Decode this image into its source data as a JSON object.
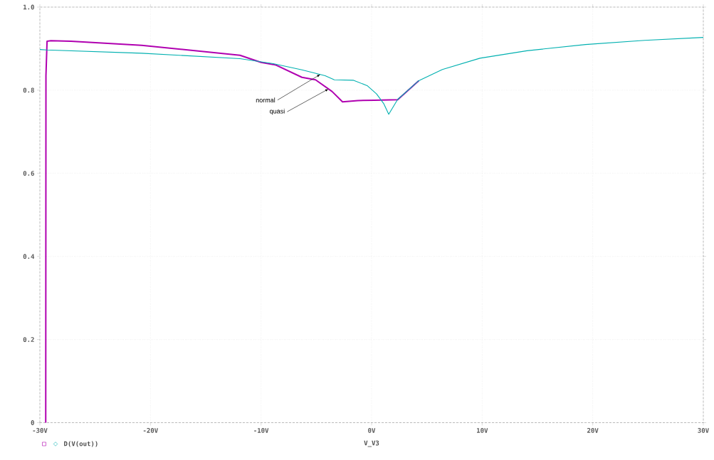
{
  "chart_data": {
    "type": "line",
    "xlabel": "V_V3",
    "xlim": [
      -30,
      30
    ],
    "ylim": [
      0,
      1.0
    ],
    "xticks": [
      {
        "value": -30,
        "label": "-30V"
      },
      {
        "value": -20,
        "label": "-20V"
      },
      {
        "value": -10,
        "label": "-10V"
      },
      {
        "value": 0,
        "label": "0V"
      },
      {
        "value": 10,
        "label": "10V"
      },
      {
        "value": 20,
        "label": "20V"
      },
      {
        "value": 30,
        "label": "30V"
      }
    ],
    "yticks": [
      0,
      0.2,
      0.4,
      0.6,
      0.8,
      {
        "value": 1.0,
        "label": "1.0"
      }
    ],
    "grid": true,
    "legend": "bottom left",
    "line_style": "solid",
    "series": [
      {
        "name": "D(V(out))",
        "color": "#b000b0",
        "x": [
          -29.47,
          -29.45,
          -29.35,
          -29,
          -27.2,
          -20.8,
          -11.9,
          -10,
          -8.9,
          -8.6,
          -6.3,
          -5.07,
          -3.58,
          -2.63,
          -1.25,
          0.24,
          2.36,
          4.27
        ],
        "values": [
          0,
          0.835,
          0.918,
          0.919,
          0.918,
          0.908,
          0.884,
          0.867,
          0.862,
          0.86,
          0.831,
          0.825,
          0.797,
          0.772,
          0.775,
          0.776,
          0.777,
          0.823
        ]
      },
      {
        "color": "#00b0b0",
        "x": [
          -30,
          -29.4,
          -20.8,
          -11.9,
          -8.9,
          -6.3,
          -4.2,
          -3.37,
          -1.67,
          -0.4,
          0.45,
          1.09,
          1.55,
          2.36,
          4.27,
          6.4,
          9.8,
          14.05,
          19.35,
          24.7,
          30
        ],
        "values": [
          0.898,
          0.897,
          0.889,
          0.876,
          0.864,
          0.849,
          0.835,
          0.825,
          0.824,
          0.811,
          0.791,
          0.768,
          0.742,
          0.778,
          0.823,
          0.85,
          0.877,
          0.895,
          0.91,
          0.92,
          0.927
        ]
      }
    ],
    "annotations": [
      {
        "text": "normal",
        "x": -4.64,
        "y": 0.838
      },
      {
        "text": "quasi",
        "x": -3.9,
        "y": 0.803
      }
    ]
  }
}
